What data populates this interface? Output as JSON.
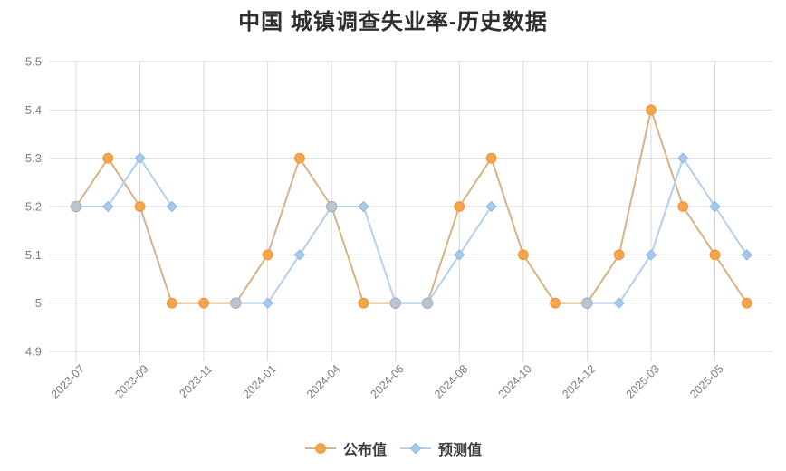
{
  "title": "中国 城镇调查失业率-历史数据",
  "colors": {
    "background": "#ffffff",
    "gridline": "#d9d9d9",
    "axis_text": "#7d7d7d",
    "title_text": "#2e2e2e",
    "legend_text": "#3d3d3d",
    "published_marker": "#f6a54c",
    "published_marker_border": "#ee9a3d",
    "published_line": "#d8b287",
    "forecast_marker": "#a9c9ec",
    "forecast_marker_border": "#94b9e2",
    "forecast_line": "#b5cfec",
    "overlap_marker": "#bcc4d0",
    "overlap_marker_border": "#a7b4c3"
  },
  "chart_data": {
    "type": "line",
    "title": "中国 城镇调查失业率-历史数据",
    "num_points": 22,
    "x_tick_labels": [
      "2023-07",
      "2023-09",
      "2023-11",
      "2024-01",
      "2024-04",
      "2024-06",
      "2024-08",
      "2024-10",
      "2024-12",
      "2025-03",
      "2025-05"
    ],
    "x_tick_point_indices": [
      0,
      2,
      4,
      6,
      8,
      10,
      12,
      14,
      16,
      18,
      20
    ],
    "y_tick_labels": [
      "5.5",
      "5.4",
      "5.3",
      "5.2",
      "5.1",
      "5",
      "4.9"
    ],
    "y_tick_values": [
      5.5,
      5.4,
      5.3,
      5.2,
      5.1,
      5.0,
      4.9
    ],
    "ylim": [
      4.9,
      5.5
    ],
    "grid": true,
    "legend_position": "bottom",
    "series": [
      {
        "name": "公布值",
        "marker": "circle",
        "values": [
          5.2,
          5.3,
          5.2,
          5.0,
          5.0,
          5.0,
          5.1,
          5.3,
          5.2,
          5.0,
          5.0,
          5.0,
          5.2,
          5.3,
          5.1,
          5.0,
          5.0,
          5.1,
          5.4,
          5.2,
          5.1,
          5.0
        ]
      },
      {
        "name": "预测值",
        "marker": "diamond",
        "values": [
          5.2,
          5.2,
          5.3,
          5.2,
          null,
          5.0,
          5.0,
          5.1,
          5.2,
          5.2,
          5.0,
          5.0,
          5.1,
          5.2,
          null,
          null,
          5.0,
          5.0,
          5.1,
          5.3,
          5.2,
          5.1
        ]
      }
    ],
    "note_overlap_points": "where both series share a value a single gray marker is shown"
  }
}
